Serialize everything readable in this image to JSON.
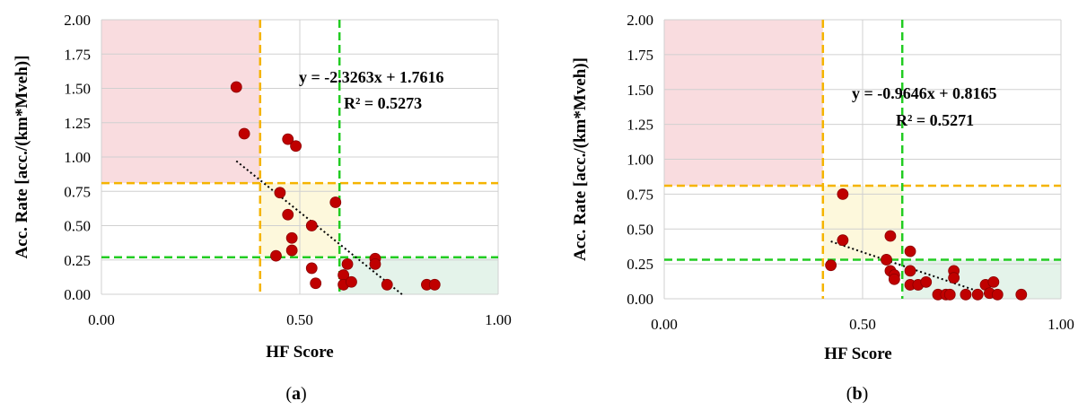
{
  "colors": {
    "red_zone": "#f9dcdf",
    "yellow_zone": "#fdf8dc",
    "green_zone": "#e4f3ea",
    "orange_line": "#f5b400",
    "green_line": "#22cc22",
    "grid": "#d0d0d0",
    "point": "#c00000",
    "point_edge": "#8b0000",
    "trend": "#000000"
  },
  "chart_data": [
    {
      "type": "scatter",
      "sublabel": "(a)",
      "xlabel": "HF Score",
      "ylabel": "Acc. Rate [acc./(km*Mveh)]",
      "xlim": [
        0,
        1
      ],
      "ylim": [
        0,
        2
      ],
      "x_ticks": [
        "0.00",
        "0.50",
        "1.00"
      ],
      "y_ticks": [
        "0.00",
        "0.25",
        "0.50",
        "0.75",
        "1.00",
        "1.25",
        "1.50",
        "1.75",
        "2.00"
      ],
      "thresholds": {
        "x_low": 0.4,
        "x_high": 0.6,
        "y_high": 0.81,
        "y_low": 0.27
      },
      "trendline": {
        "slope": -2.3263,
        "intercept": 1.7616,
        "x_range": [
          0.34,
          0.76
        ]
      },
      "equation": "y = -2.3263x + 1.7616",
      "r2": "R² = 0.5273",
      "points": [
        {
          "x": 0.34,
          "y": 1.51
        },
        {
          "x": 0.36,
          "y": 1.17
        },
        {
          "x": 0.47,
          "y": 1.13
        },
        {
          "x": 0.49,
          "y": 1.08
        },
        {
          "x": 0.45,
          "y": 0.74
        },
        {
          "x": 0.59,
          "y": 0.67
        },
        {
          "x": 0.47,
          "y": 0.58
        },
        {
          "x": 0.53,
          "y": 0.5
        },
        {
          "x": 0.48,
          "y": 0.41
        },
        {
          "x": 0.48,
          "y": 0.32
        },
        {
          "x": 0.44,
          "y": 0.28
        },
        {
          "x": 0.53,
          "y": 0.19
        },
        {
          "x": 0.54,
          "y": 0.08
        },
        {
          "x": 0.62,
          "y": 0.22
        },
        {
          "x": 0.61,
          "y": 0.14
        },
        {
          "x": 0.61,
          "y": 0.07
        },
        {
          "x": 0.63,
          "y": 0.09
        },
        {
          "x": 0.69,
          "y": 0.26
        },
        {
          "x": 0.69,
          "y": 0.22
        },
        {
          "x": 0.72,
          "y": 0.07
        },
        {
          "x": 0.82,
          "y": 0.07
        },
        {
          "x": 0.84,
          "y": 0.07
        }
      ]
    },
    {
      "type": "scatter",
      "sublabel": "(b)",
      "xlabel": "HF Score",
      "ylabel": "Acc. Rate [acc./(km*Mveh)]",
      "xlim": [
        0,
        1
      ],
      "ylim": [
        0,
        2
      ],
      "x_ticks": [
        "0.00",
        "0.50",
        "1.00"
      ],
      "y_ticks": [
        "0.00",
        "0.25",
        "0.50",
        "0.75",
        "1.00",
        "1.25",
        "1.50",
        "1.75",
        "2.00"
      ],
      "thresholds": {
        "x_low": 0.4,
        "x_high": 0.6,
        "y_high": 0.81,
        "y_low": 0.28
      },
      "trendline": {
        "slope": -0.9646,
        "intercept": 0.8165,
        "x_range": [
          0.42,
          0.83
        ]
      },
      "equation": "y = -0.9646x + 0.8165",
      "r2": "R² = 0.5271",
      "points": [
        {
          "x": 0.45,
          "y": 0.75
        },
        {
          "x": 0.45,
          "y": 0.42
        },
        {
          "x": 0.42,
          "y": 0.24
        },
        {
          "x": 0.57,
          "y": 0.45
        },
        {
          "x": 0.56,
          "y": 0.28
        },
        {
          "x": 0.57,
          "y": 0.2
        },
        {
          "x": 0.58,
          "y": 0.17
        },
        {
          "x": 0.58,
          "y": 0.14
        },
        {
          "x": 0.62,
          "y": 0.34
        },
        {
          "x": 0.62,
          "y": 0.2
        },
        {
          "x": 0.62,
          "y": 0.1
        },
        {
          "x": 0.64,
          "y": 0.1
        },
        {
          "x": 0.66,
          "y": 0.12
        },
        {
          "x": 0.69,
          "y": 0.03
        },
        {
          "x": 0.71,
          "y": 0.03
        },
        {
          "x": 0.72,
          "y": 0.03
        },
        {
          "x": 0.73,
          "y": 0.2
        },
        {
          "x": 0.73,
          "y": 0.15
        },
        {
          "x": 0.76,
          "y": 0.03
        },
        {
          "x": 0.79,
          "y": 0.03
        },
        {
          "x": 0.81,
          "y": 0.1
        },
        {
          "x": 0.82,
          "y": 0.04
        },
        {
          "x": 0.83,
          "y": 0.12
        },
        {
          "x": 0.84,
          "y": 0.03
        },
        {
          "x": 0.9,
          "y": 0.03
        }
      ]
    }
  ]
}
